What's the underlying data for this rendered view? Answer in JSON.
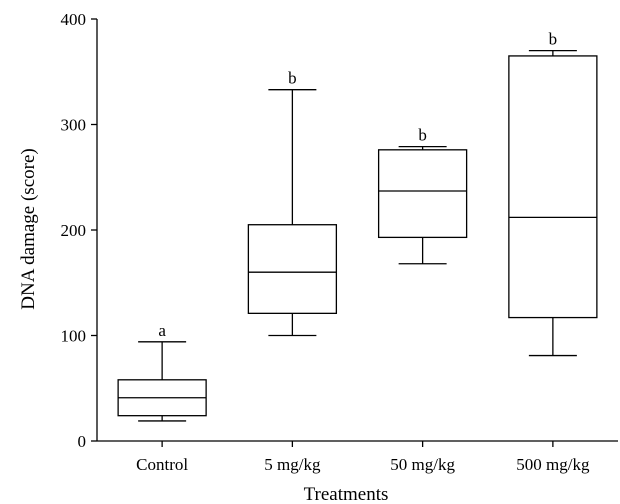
{
  "chart_data": {
    "type": "box",
    "xlabel": "Treatments",
    "ylabel": "DNA damage (score)",
    "ylim": [
      0,
      400
    ],
    "yticks": [
      "0",
      "100",
      "200",
      "300",
      "400"
    ],
    "grid": false,
    "categories": [
      "Control",
      "5 mg/kg",
      "50 mg/kg",
      "500 mg/kg"
    ],
    "boxes": [
      {
        "category": "Control",
        "min": 19,
        "q1": 24,
        "median": 41,
        "q3": 58,
        "max": 94,
        "significance": "a"
      },
      {
        "category": "5 mg/kg",
        "min": 100,
        "q1": 121,
        "median": 160,
        "q3": 205,
        "max": 333,
        "significance": "b"
      },
      {
        "category": "50 mg/kg",
        "min": 168,
        "q1": 193,
        "median": 237,
        "q3": 276,
        "max": 279,
        "significance": "b"
      },
      {
        "category": "500 mg/kg",
        "min": 81,
        "q1": 117,
        "median": 212,
        "q3": 365,
        "max": 370,
        "significance": "b"
      }
    ]
  }
}
